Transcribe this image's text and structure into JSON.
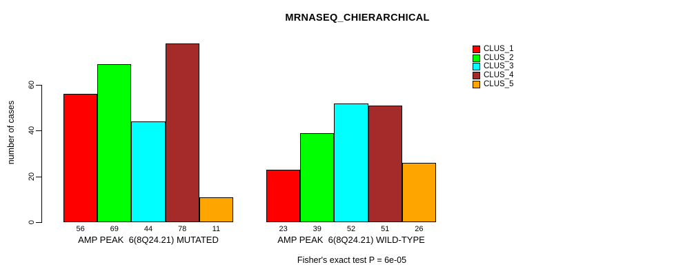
{
  "chart_data": {
    "type": "bar",
    "title": "MRNASEQ_CHIERARCHICAL",
    "ylabel": "number of cases",
    "xlabel": "",
    "yticks": [
      0,
      20,
      40,
      60
    ],
    "ylim": [
      0,
      80
    ],
    "grid": false,
    "legend_position": "top-right",
    "series_names": [
      "CLUS_1",
      "CLUS_2",
      "CLUS_3",
      "CLUS_4",
      "CLUS_5"
    ],
    "series_colors": [
      "#FF0000",
      "#00FF00",
      "#00FFFF",
      "#A52A2A",
      "#FFA500"
    ],
    "groups": [
      {
        "label": "AMP PEAK  6(8Q24.21) MUTATED",
        "values": [
          56,
          69,
          44,
          78,
          11
        ]
      },
      {
        "label": "AMP PEAK  6(8Q24.21) WILD-TYPE",
        "values": [
          23,
          39,
          52,
          51,
          26
        ]
      }
    ],
    "value_labels_shown": true,
    "annotation": "Fisher's exact test P = 6e-05"
  }
}
